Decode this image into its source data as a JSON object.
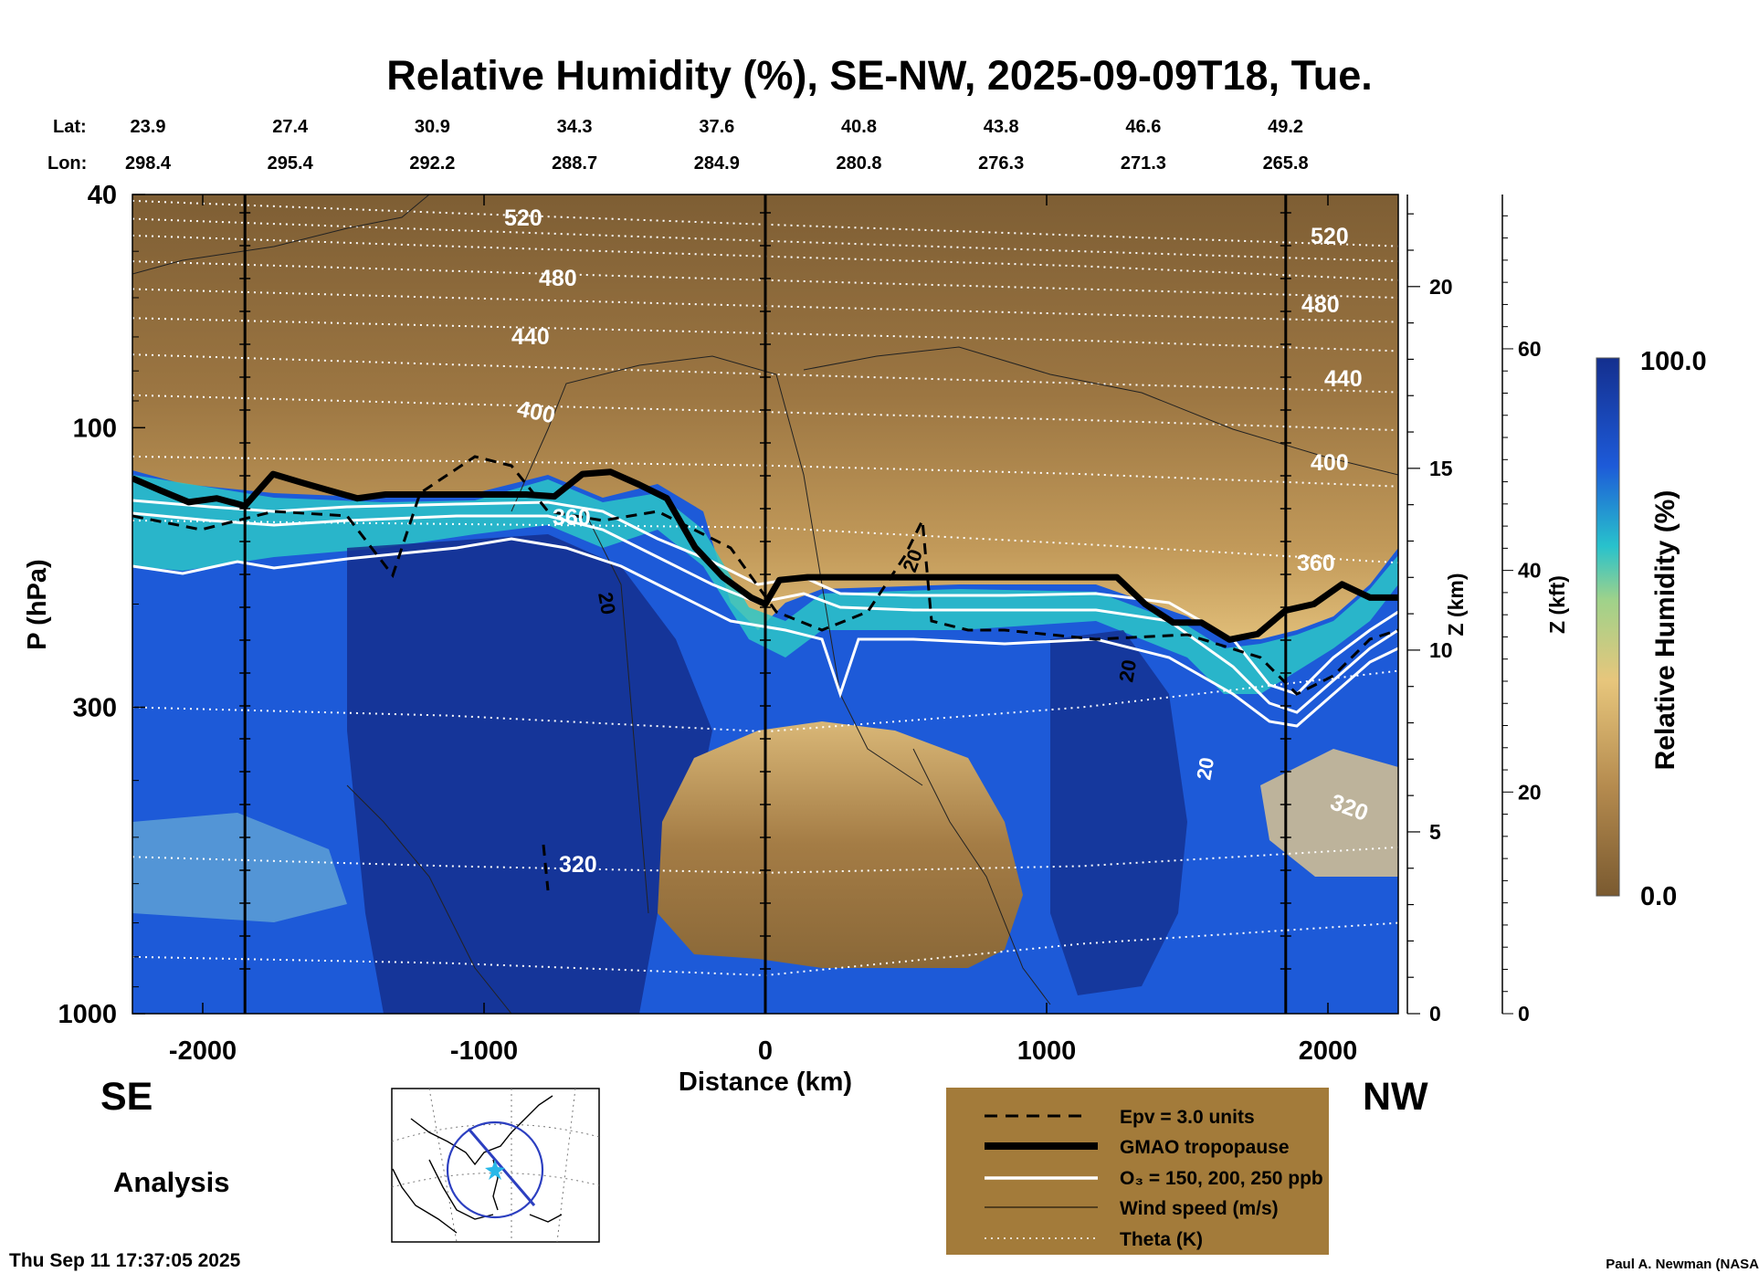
{
  "chart_data": {
    "type": "heatmap",
    "title": "Relative Humidity (%), SE-NW, 2025-09-09T18, Tue.",
    "xlabel": "Distance (km)",
    "ylabel": "P (hPa)",
    "z_km_label": "Z (km)",
    "z_kft_label": "Z (kft)",
    "xlim": [
      -2250,
      2250
    ],
    "x_ticks": [
      -2000,
      -1000,
      0,
      1000,
      2000
    ],
    "x_tick_labels": [
      "-2000",
      "-1000",
      "0",
      "1000",
      "2000"
    ],
    "ylim_hpa": [
      1000,
      40
    ],
    "y_scale": "log",
    "y_ticks_hpa": [
      40,
      100,
      300,
      1000
    ],
    "y_tick_labels": [
      "40",
      "100",
      "300",
      "1000"
    ],
    "z_km_ticks": [
      0,
      5,
      10,
      15,
      20
    ],
    "z_km_tick_labels": [
      "0",
      "5",
      "10",
      "15",
      "20"
    ],
    "z_kft_ticks": [
      0,
      20,
      40,
      60
    ],
    "z_kft_tick_labels": [
      "0",
      "20",
      "40",
      "60"
    ],
    "lat_label": "Lat:",
    "lon_label": "Lon:",
    "lat_values": [
      "23.9",
      "27.4",
      "30.9",
      "34.3",
      "37.6",
      "40.8",
      "43.8",
      "46.6",
      "49.2"
    ],
    "lon_values": [
      "298.4",
      "295.4",
      "292.2",
      "288.7",
      "284.9",
      "280.8",
      "276.3",
      "271.3",
      "265.8"
    ],
    "lat_lon_distance_km": [
      -2000,
      -1500,
      -1000,
      -500,
      0,
      500,
      1000,
      1500,
      2000
    ],
    "vertical_marker_lines_km": [
      -1850,
      0,
      1850
    ],
    "theta_contours": [
      {
        "label": "520",
        "p": [
          44,
          46,
          48,
          50,
          52
        ]
      },
      {
        "label": "480",
        "p": [
          52,
          54,
          56,
          58,
          60
        ]
      },
      {
        "label": "440",
        "p": [
          65,
          67,
          69,
          71,
          74
        ]
      },
      {
        "label": "400",
        "p": [
          88,
          91,
          94,
          97,
          101
        ]
      },
      {
        "label": "360",
        "p": [
          144,
          146,
          148,
          158,
          170
        ]
      },
      {
        "label": "320",
        "p": [
          540,
          560,
          575,
          560,
          520
        ]
      }
    ],
    "theta_label_text": {
      "t520a": "520",
      "t520b": "520",
      "t480a": "480",
      "t480b": "480",
      "t440a": "440",
      "t440b": "440",
      "t400a": "400",
      "t400b": "400",
      "t360a": "360",
      "t360b": "360",
      "t320a": "320",
      "t320b": "320"
    },
    "wind_labels": [
      "20",
      "20",
      "20",
      "20"
    ],
    "tropopause_km": [
      -2250,
      -2150,
      -2050,
      -1950,
      -1850,
      -1750,
      -1650,
      -1550,
      -1450,
      -1350,
      -1250,
      -1150,
      -1050,
      -950,
      -850,
      -750,
      -650,
      -550,
      -450,
      -350,
      -250,
      -150,
      -50,
      0,
      50,
      150,
      250,
      500,
      750,
      1000,
      1250,
      1350,
      1450,
      1550,
      1650,
      1750,
      1850,
      1950,
      2050,
      2150,
      2250
    ],
    "tropopause_hpa": [
      122,
      128,
      134,
      132,
      136,
      120,
      124,
      128,
      132,
      130,
      130,
      130,
      130,
      130,
      130,
      131,
      120,
      119,
      125,
      132,
      160,
      180,
      195,
      200,
      182,
      180,
      180,
      180,
      180,
      180,
      180,
      200,
      215,
      215,
      230,
      225,
      205,
      200,
      185,
      195,
      195
    ],
    "colorbar_label": "Relative Humidity (%)",
    "colorbar_max": "100.0",
    "colorbar_min": "0.0",
    "colorbar_range": [
      0,
      100
    ],
    "colors": {
      "rh_0": "#7a5a30",
      "rh_20": "#b48a4e",
      "rh_40": "#e7c67c",
      "rh_60": "#28c2cc",
      "rh_80": "#1d5ad8",
      "rh_100": "#142f8e",
      "legend_bg": "#a37b3a"
    },
    "legend": {
      "items": [
        {
          "style": "dashed",
          "label": "Epv = 3.0 units"
        },
        {
          "style": "thick",
          "label": "GMAO tropopause"
        },
        {
          "style": "white",
          "label": "O₃ = 150, 200, 250 ppb"
        },
        {
          "style": "thin",
          "label": "Wind speed (m/s)"
        },
        {
          "style": "dotted",
          "label": "Theta (K)"
        }
      ]
    },
    "direction_left": "SE",
    "direction_right": "NW",
    "analysis_label": "Analysis",
    "timestamp": "Thu Sep 11 17:37:05 2025",
    "credit": "Paul A. Newman (NASA"
  }
}
